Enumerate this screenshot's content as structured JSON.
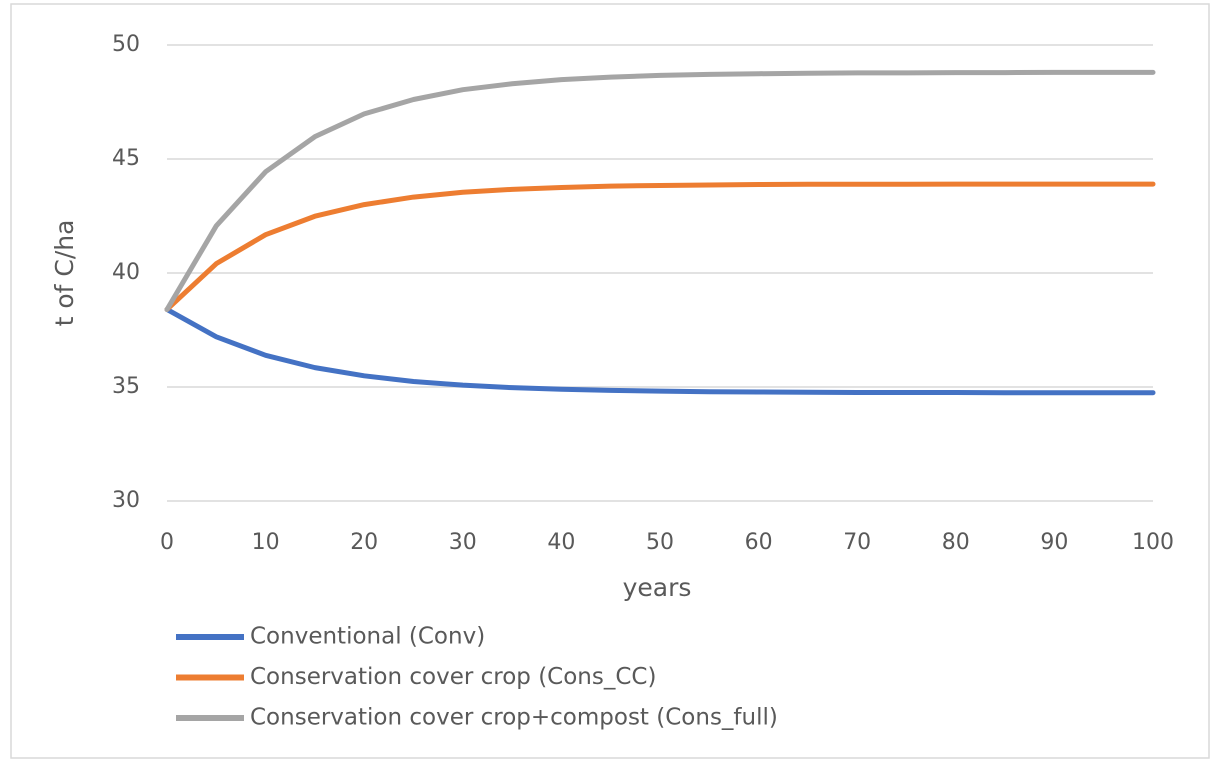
{
  "chart_data": {
    "type": "line",
    "x": [
      0,
      5,
      10,
      15,
      20,
      25,
      30,
      35,
      40,
      45,
      50,
      55,
      60,
      65,
      70,
      75,
      80,
      85,
      90,
      95,
      100
    ],
    "series": [
      {
        "name": "Conventional (Conv)",
        "color": "#4472c4",
        "values": [
          38.4,
          37.2,
          36.39,
          35.85,
          35.49,
          35.24,
          35.08,
          34.97,
          34.9,
          34.85,
          34.82,
          34.79,
          34.78,
          34.77,
          34.76,
          34.76,
          34.76,
          34.75,
          34.75,
          34.75,
          34.75
        ]
      },
      {
        "name": "Conservation cover crop (Cons_CC)",
        "color": "#ed7d31",
        "values": [
          38.4,
          40.41,
          41.68,
          42.49,
          43.0,
          43.33,
          43.54,
          43.67,
          43.75,
          43.81,
          43.84,
          43.86,
          43.88,
          43.89,
          43.89,
          43.89,
          43.9,
          43.9,
          43.9,
          43.9,
          43.9
        ]
      },
      {
        "name": "Conservation cover crop+compost (Cons_full)",
        "color": "#a5a5a5",
        "values": [
          38.4,
          42.07,
          44.44,
          45.98,
          46.98,
          47.61,
          48.04,
          48.3,
          48.48,
          48.59,
          48.67,
          48.71,
          48.74,
          48.76,
          48.78,
          48.78,
          48.79,
          48.79,
          48.8,
          48.8,
          48.8
        ]
      }
    ],
    "xlabel": "years",
    "ylabel": "t of C/ha",
    "xlim": [
      0,
      100
    ],
    "xticks": [
      0,
      10,
      20,
      30,
      40,
      50,
      60,
      70,
      80,
      90,
      100
    ],
    "ylim": [
      30,
      50
    ],
    "yticks": [
      30,
      35,
      40,
      45,
      50
    ],
    "grid": true,
    "legend": "bottom"
  }
}
